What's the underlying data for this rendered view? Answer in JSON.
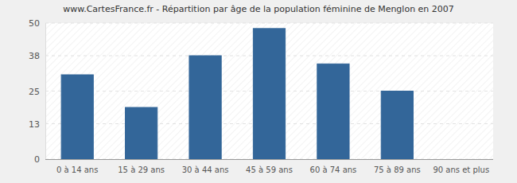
{
  "chart_data": {
    "type": "bar",
    "title": "www.CartesFrance.fr - Répartition par âge de la population féminine de Menglon en 2007",
    "categories": [
      "0 à 14 ans",
      "15 à 29 ans",
      "30 à 44 ans",
      "45 à 59 ans",
      "60 à 74 ans",
      "75 à 89 ans",
      "90 ans et plus"
    ],
    "values": [
      31,
      19,
      38,
      48,
      35,
      25,
      0
    ],
    "color": "#336699",
    "ylim": [
      0,
      50
    ],
    "yticks": [
      0,
      13,
      25,
      38,
      50
    ],
    "grid": true
  }
}
